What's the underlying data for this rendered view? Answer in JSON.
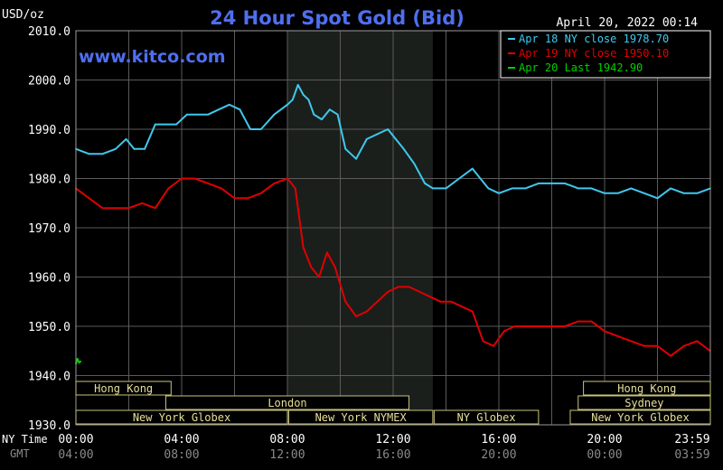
{
  "header": {
    "unit": "USD/oz",
    "title": "24 Hour Spot Gold (Bid)",
    "timestamp": "April 20, 2022 00:14",
    "watermark": "www.kitco.com"
  },
  "legend": {
    "items": [
      {
        "label": "Apr 18 NY close 1978.70",
        "color": "#3fc8ee"
      },
      {
        "label": "Apr 19 NY close 1950.10",
        "color": "#e00000"
      },
      {
        "label": "Apr 20 Last 1942.90",
        "color": "#00d000"
      }
    ]
  },
  "sessions": [
    {
      "label": "Hong Kong",
      "row": 0,
      "start": 0.0,
      "end": 3.6
    },
    {
      "label": "Hong Kong",
      "row": 0,
      "start": 19.2,
      "end": 24.0
    },
    {
      "label": "London",
      "row": 1,
      "start": 3.4,
      "end": 12.6
    },
    {
      "label": "Sydney",
      "row": 1,
      "start": 19.0,
      "end": 24.0
    },
    {
      "label": "New York Globex",
      "row": 2,
      "start": 0.0,
      "end": 8.0
    },
    {
      "label": "New York NYMEX",
      "row": 2,
      "start": 8.05,
      "end": 13.5
    },
    {
      "label": "NY Globex",
      "row": 2,
      "start": 13.55,
      "end": 17.5
    },
    {
      "label": "New York Globex",
      "row": 2,
      "start": 18.7,
      "end": 24.0
    }
  ],
  "time_rows": {
    "ny_label": "NY Time",
    "gmt_label": "GMT",
    "ny_ticks": [
      "00:00",
      "04:00",
      "08:00",
      "12:00",
      "16:00",
      "20:00",
      "23:59"
    ],
    "gmt_ticks": [
      "04:00",
      "08:00",
      "12:00",
      "16:00",
      "20:00",
      "00:00",
      "03:59"
    ]
  },
  "chart_data": {
    "type": "line",
    "title": "24 Hour Spot Gold (Bid)",
    "ylabel": "USD/oz",
    "xlabel": "",
    "xlim": [
      0,
      24
    ],
    "ylim": [
      1930,
      2010
    ],
    "y_ticks": [
      2010,
      2000,
      1990,
      1980,
      1970,
      1960,
      1950,
      1940,
      1930
    ],
    "y_tick_labels": [
      "2010.0",
      "2000.0",
      "1990.0",
      "1980.0",
      "1970.0",
      "1960.0",
      "1950.0",
      "1940.0",
      "1930.0"
    ],
    "x_ticks": [
      0,
      4,
      8,
      12,
      16,
      20,
      24
    ],
    "grid": true,
    "shaded_session": [
      8.0,
      13.5
    ],
    "series": [
      {
        "name": "Apr 18",
        "color": "#3fc8ee",
        "x": [
          0,
          0.5,
          1,
          1.5,
          1.9,
          2.2,
          2.6,
          3,
          3.4,
          3.8,
          4.2,
          4.6,
          5,
          5.4,
          5.8,
          6.2,
          6.6,
          7,
          7.5,
          8,
          8.2,
          8.4,
          8.6,
          8.8,
          9,
          9.3,
          9.6,
          9.9,
          10.2,
          10.6,
          11,
          11.4,
          11.8,
          12.1,
          12.4,
          12.8,
          13.2,
          13.5,
          14,
          14.5,
          15,
          15.3,
          15.6,
          16,
          16.5,
          17,
          17.5,
          18,
          18.5,
          19,
          19.5,
          20,
          20.5,
          21,
          21.5,
          22,
          22.5,
          23,
          23.5,
          24
        ],
        "y": [
          1986,
          1985,
          1985,
          1986,
          1988,
          1986,
          1986,
          1991,
          1991,
          1991,
          1993,
          1993,
          1993,
          1994,
          1995,
          1994,
          1990,
          1990,
          1993,
          1995,
          1996,
          1999,
          1997,
          1996,
          1993,
          1992,
          1994,
          1993,
          1986,
          1984,
          1988,
          1989,
          1990,
          1988,
          1986,
          1983,
          1979,
          1978,
          1978,
          1980,
          1982,
          1980,
          1978,
          1977,
          1978,
          1978,
          1979,
          1979,
          1979,
          1978,
          1978,
          1977,
          1977,
          1978,
          1977,
          1976,
          1978,
          1977,
          1977,
          1978
        ]
      },
      {
        "name": "Apr 19",
        "color": "#e00000",
        "x": [
          0,
          0.5,
          1,
          1.5,
          2,
          2.5,
          3,
          3.5,
          4,
          4.5,
          5,
          5.5,
          6,
          6.5,
          7,
          7.5,
          8,
          8.3,
          8.6,
          8.9,
          9.2,
          9.5,
          9.8,
          10.2,
          10.6,
          11,
          11.4,
          11.8,
          12.2,
          12.6,
          13,
          13.4,
          13.8,
          14.2,
          14.6,
          15,
          15.4,
          15.8,
          16.2,
          16.6,
          17,
          17.5,
          18,
          18.5,
          19,
          19.5,
          20,
          20.5,
          21,
          21.5,
          22,
          22.5,
          23,
          23.5,
          24
        ],
        "y": [
          1978,
          1976,
          1974,
          1974,
          1974,
          1975,
          1974,
          1978,
          1980,
          1980,
          1979,
          1978,
          1976,
          1976,
          1977,
          1979,
          1980,
          1978,
          1966,
          1962,
          1960,
          1965,
          1962,
          1955,
          1952,
          1953,
          1955,
          1957,
          1958,
          1958,
          1957,
          1956,
          1955,
          1955,
          1954,
          1953,
          1947,
          1946,
          1949,
          1950,
          1950,
          1950,
          1950,
          1950,
          1951,
          1951,
          1949,
          1948,
          1947,
          1946,
          1946,
          1944,
          1946,
          1947,
          1945
        ]
      },
      {
        "name": "Apr 20",
        "color": "#00d000",
        "x": [
          0,
          0.06,
          0.12,
          0.18
        ],
        "y": [
          1942.4,
          1943.4,
          1942.6,
          1942.9
        ]
      }
    ]
  }
}
